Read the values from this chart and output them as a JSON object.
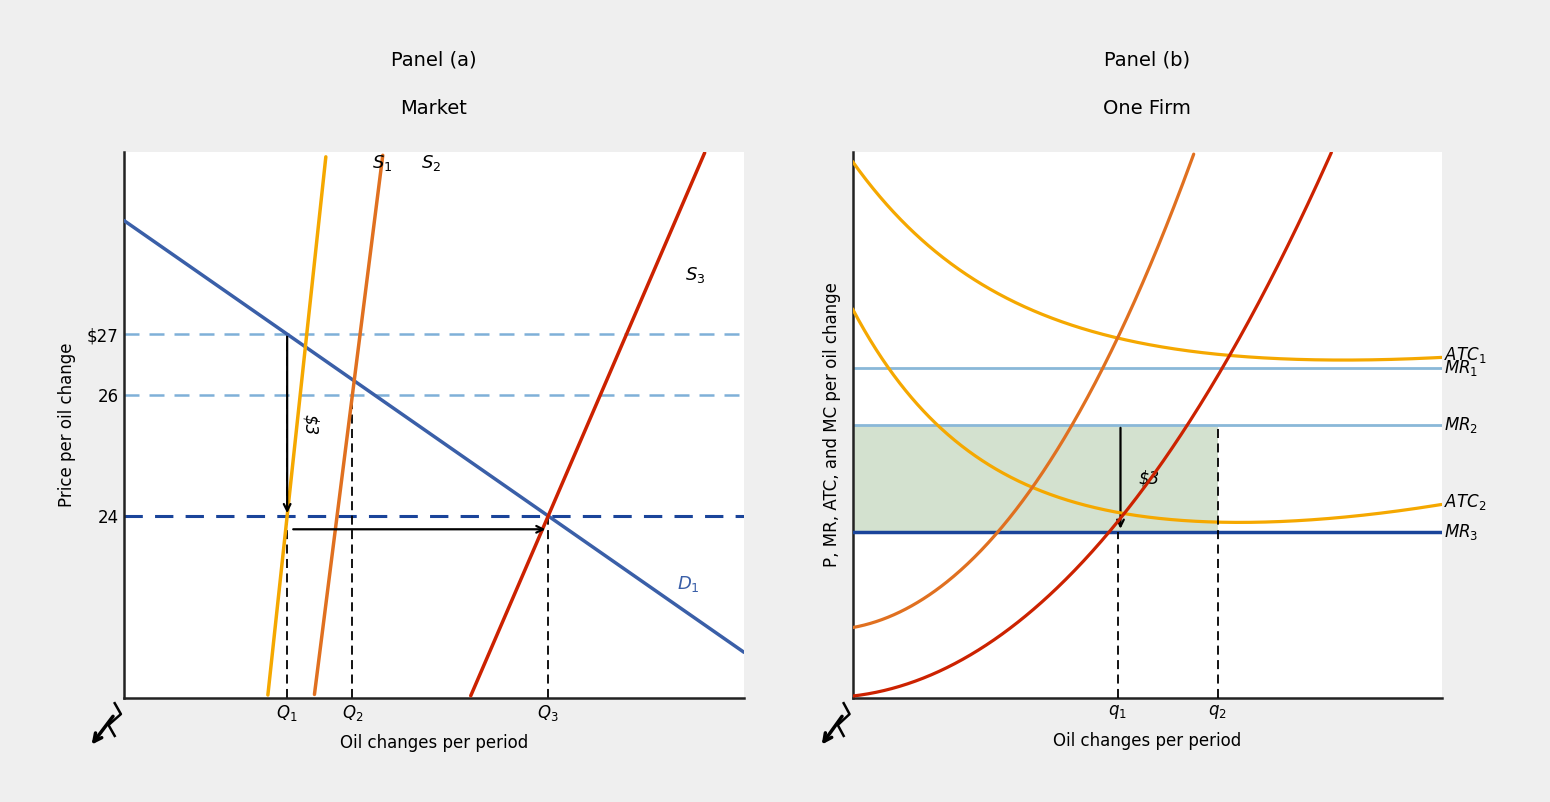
{
  "panel_a": {
    "title1": "Panel (a)",
    "title2": "Market",
    "xlabel": "Oil changes per period",
    "ylabel": "Price per oil change",
    "price_27": 27,
    "price_26": 26,
    "price_24": 24,
    "Q1_x": 3.5,
    "Q2_x": 4.5,
    "Q3_x": 7.5,
    "xlim": [
      1.0,
      10.5
    ],
    "ylim": [
      21.0,
      30.0
    ],
    "D1_color": "#3a5fa8",
    "S1_color": "#f5a800",
    "S2_color": "#e07020",
    "S3_color": "#cc2200",
    "hline_27_color": "#7fb0d8",
    "hline_26_color": "#7fb0d8",
    "hline_24_color": "#1a449a"
  },
  "panel_b": {
    "title1": "Panel (b)",
    "title2": "One Firm",
    "xlabel": "Oil changes per period",
    "ylabel": "P, MR, ATC, and MC per oil change",
    "MR1_y": 0.685,
    "MR2_y": 0.575,
    "MR3_y": 0.37,
    "q1_x": 0.5,
    "q2_x": 0.67,
    "xlim": [
      0.05,
      1.05
    ],
    "ylim": [
      0.05,
      1.1
    ],
    "MC1_color": "#e07020",
    "MC2_color": "#cc2200",
    "ATC1_color": "#f5a800",
    "ATC2_color": "#f5a800",
    "MR1_color": "#8ab8d8",
    "MR2_color": "#8ab8d8",
    "MR3_color": "#1a449a",
    "shade_color": "#c5d8c0"
  },
  "bg_color": "#efefef",
  "plot_bg": "#ffffff"
}
